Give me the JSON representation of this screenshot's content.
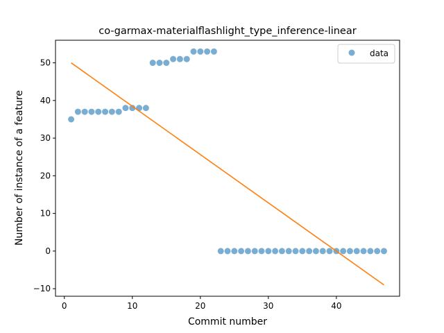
{
  "chart_data": {
    "type": "scatter",
    "title": "co-garmax-materialflashlight_type_inference-linear",
    "xlabel": "Commit number",
    "ylabel": "Number of instance of a feature",
    "xlim": [
      -1.3,
      49.3
    ],
    "ylim": [
      -12,
      56
    ],
    "xticks": [
      0,
      10,
      20,
      30,
      40
    ],
    "yticks": [
      -10,
      0,
      10,
      20,
      30,
      40,
      50
    ],
    "grid": false,
    "legend": {
      "placement": "top-right",
      "entries": [
        "data"
      ]
    },
    "series": [
      {
        "name": "data",
        "kind": "scatter",
        "color": "#1f77b4",
        "x": [
          1,
          2,
          3,
          4,
          5,
          6,
          7,
          8,
          9,
          10,
          11,
          12,
          13,
          14,
          15,
          16,
          17,
          18,
          19,
          20,
          21,
          22,
          23,
          24,
          25,
          26,
          27,
          28,
          29,
          30,
          31,
          32,
          33,
          34,
          35,
          36,
          37,
          38,
          39,
          40,
          41,
          42,
          43,
          44,
          45,
          46,
          47
        ],
        "y": [
          35,
          37,
          37,
          37,
          37,
          37,
          37,
          37,
          38,
          38,
          38,
          38,
          50,
          50,
          50,
          51,
          51,
          51,
          53,
          53,
          53,
          53,
          0,
          0,
          0,
          0,
          0,
          0,
          0,
          0,
          0,
          0,
          0,
          0,
          0,
          0,
          0,
          0,
          0,
          0,
          0,
          0,
          0,
          0,
          0,
          0,
          0
        ]
      },
      {
        "kind": "line",
        "color": "#ff7f0e",
        "x": [
          1,
          47
        ],
        "y": [
          50,
          -9
        ]
      }
    ]
  }
}
